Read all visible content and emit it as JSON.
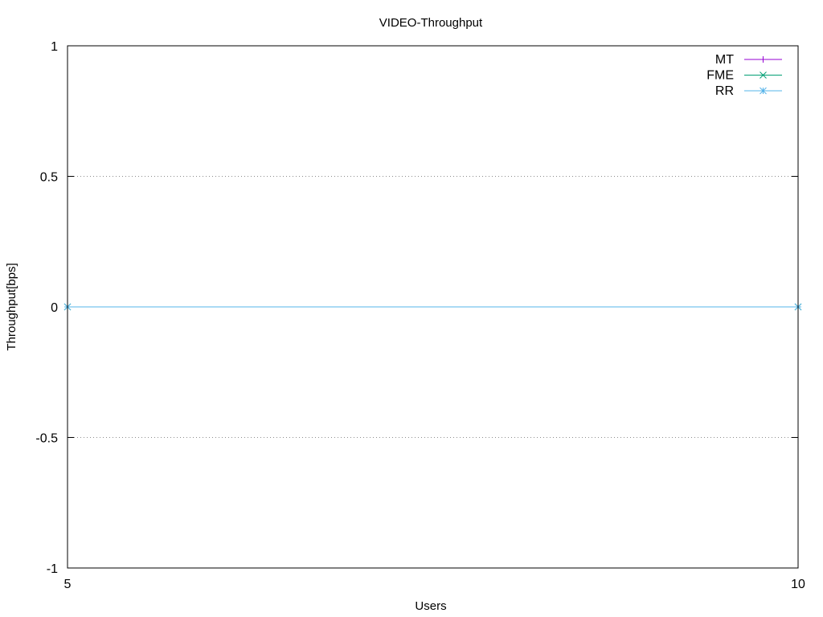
{
  "chart_data": {
    "type": "line",
    "title": "VIDEO-Throughput",
    "xlabel": "Users",
    "ylabel": "Throughput[bps]",
    "xlim": [
      5,
      10
    ],
    "ylim": [
      -1,
      1
    ],
    "x_ticks": [
      5,
      10
    ],
    "y_ticks": [
      -1,
      -0.5,
      0,
      0.5,
      1
    ],
    "y_tick_labels": [
      "-1",
      "-0.5",
      "0",
      "0.5",
      "1"
    ],
    "x_tick_labels": [
      "5",
      "10"
    ],
    "grid": "horizontal dotted at y ticks",
    "legend_position": "top-right",
    "x": [
      5,
      10
    ],
    "series": [
      {
        "name": "MT",
        "values": [
          0,
          0
        ],
        "color": "#9400d3",
        "marker": "plus"
      },
      {
        "name": "FME",
        "values": [
          0,
          0
        ],
        "color": "#009e73",
        "marker": "cross"
      },
      {
        "name": "RR",
        "values": [
          0,
          0
        ],
        "color": "#56b4e9",
        "marker": "star"
      }
    ]
  }
}
